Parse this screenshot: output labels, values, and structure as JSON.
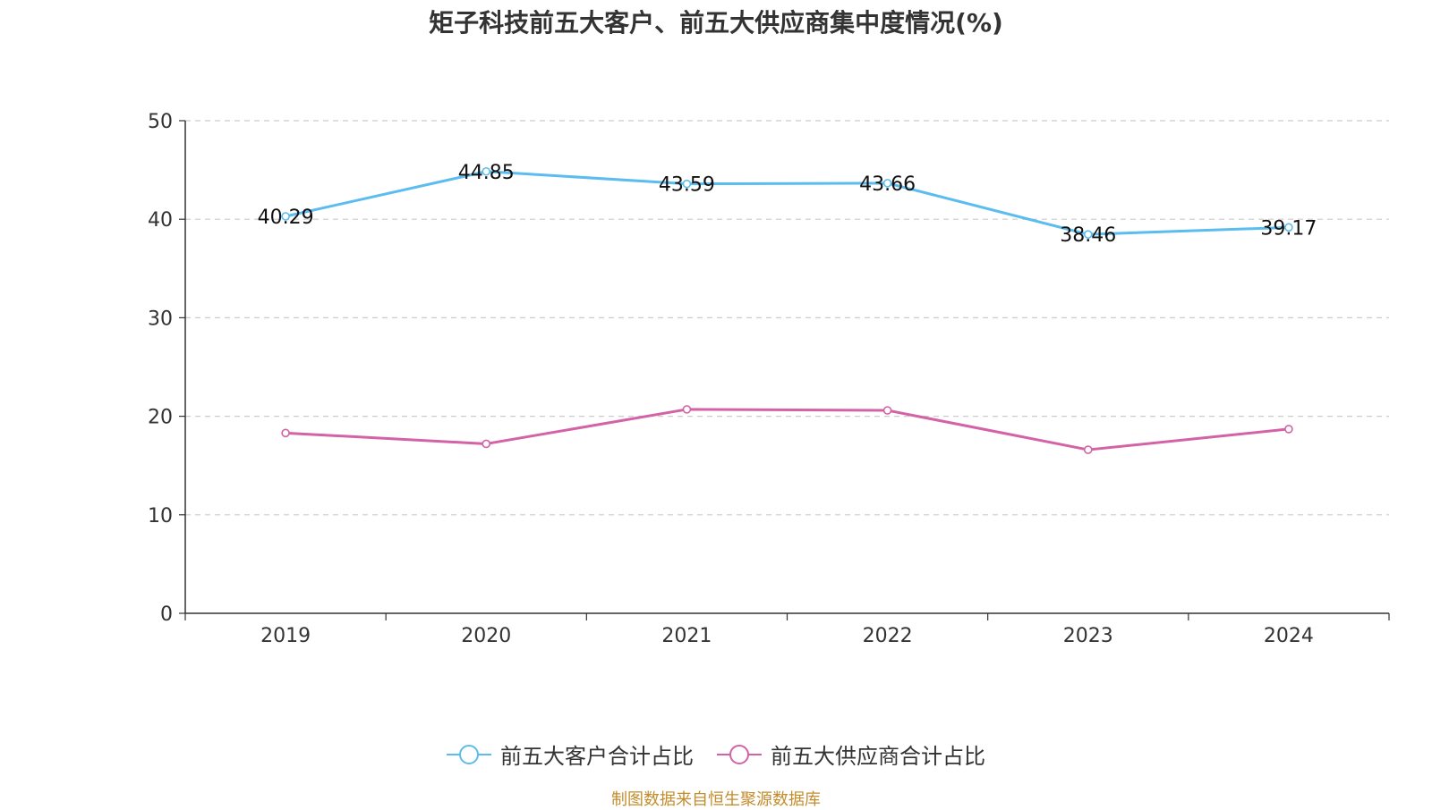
{
  "chart_data": {
    "type": "line",
    "title": "矩子科技前五大客户、前五大供应商集中度情况(%)",
    "categories": [
      "2019",
      "2020",
      "2021",
      "2022",
      "2023",
      "2024"
    ],
    "ylim": [
      0,
      50
    ],
    "yticks": [
      "0",
      "10",
      "20",
      "30",
      "40",
      "50"
    ],
    "grid": true,
    "legend_position": "bottom",
    "series": [
      {
        "name": "前五大客户合计占比",
        "color": "#5bbcf0",
        "values": [
          40.29,
          44.85,
          43.59,
          43.66,
          38.46,
          39.17
        ],
        "labels": [
          "40.29",
          "44.85",
          "43.59",
          "43.66",
          "38.46",
          "39.17"
        ],
        "show_labels": true
      },
      {
        "name": "前五大供应商合计占比",
        "color": "#d462a6",
        "values": [
          18.3,
          17.2,
          20.7,
          20.6,
          16.6,
          18.7
        ],
        "show_labels": false
      }
    ]
  },
  "source_note": "制图数据来自恒生聚源数据库"
}
